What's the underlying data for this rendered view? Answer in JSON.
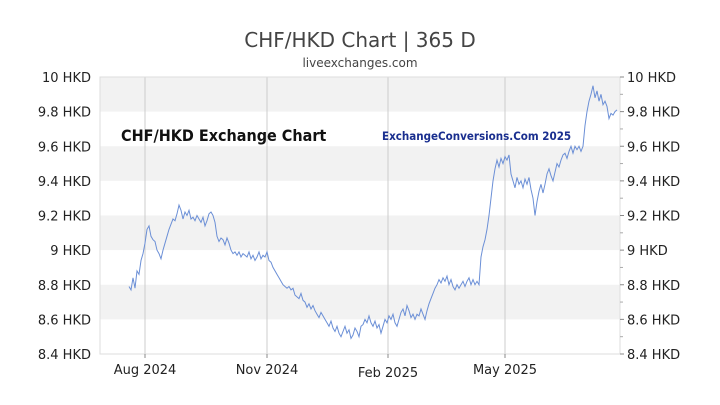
{
  "chart_data": {
    "type": "line",
    "title": "CHF/HKD Chart | 365 D",
    "subtitle": "liveexchanges.com",
    "inner_title": "CHF/HKD Exchange Chart",
    "watermark": "ExchangeConversions.Com 2025",
    "ylim": [
      8.4,
      10
    ],
    "y_ticks": [
      {
        "value": 10,
        "label": "10 HKD"
      },
      {
        "value": 9.8,
        "label": "9.8 HKD"
      },
      {
        "value": 9.6,
        "label": "9.6 HKD"
      },
      {
        "value": 9.4,
        "label": "9.4 HKD"
      },
      {
        "value": 9.2,
        "label": "9.2 HKD"
      },
      {
        "value": 9,
        "label": "9 HKD"
      },
      {
        "value": 8.8,
        "label": "8.8 HKD"
      },
      {
        "value": 8.6,
        "label": "8.6 HKD"
      },
      {
        "value": 8.4,
        "label": "8.4 HKD"
      }
    ],
    "x_ticks": [
      {
        "day": 25,
        "label": "Aug 2024",
        "gridline": true
      },
      {
        "day": 147,
        "label": "Nov 2024",
        "gridline": true
      },
      {
        "day": 268,
        "label": "Feb 2025",
        "gridline": true
      },
      {
        "day": 385,
        "label": "May 2025",
        "gridline": true
      }
    ],
    "xlim": [
      -20,
      500
    ],
    "grid": true,
    "line_color": "#6b8fd6",
    "band_color": "#f2f2f2",
    "series": [
      {
        "values": [
          [
            9,
            8.79
          ],
          [
            11,
            8.77
          ],
          [
            13,
            8.84
          ],
          [
            15,
            8.78
          ],
          [
            17,
            8.88
          ],
          [
            19,
            8.86
          ],
          [
            21,
            8.94
          ],
          [
            23,
            8.98
          ],
          [
            25,
            9.04
          ],
          [
            27,
            9.12
          ],
          [
            29,
            9.14
          ],
          [
            31,
            9.08
          ],
          [
            33,
            9.06
          ],
          [
            35,
            9.05
          ],
          [
            37,
            9.0
          ],
          [
            39,
            8.98
          ],
          [
            41,
            8.95
          ],
          [
            43,
            9.0
          ],
          [
            45,
            9.04
          ],
          [
            47,
            9.08
          ],
          [
            49,
            9.12
          ],
          [
            51,
            9.15
          ],
          [
            53,
            9.18
          ],
          [
            55,
            9.17
          ],
          [
            57,
            9.21
          ],
          [
            59,
            9.26
          ],
          [
            61,
            9.23
          ],
          [
            63,
            9.18
          ],
          [
            65,
            9.22
          ],
          [
            67,
            9.2
          ],
          [
            69,
            9.23
          ],
          [
            71,
            9.18
          ],
          [
            73,
            9.19
          ],
          [
            75,
            9.17
          ],
          [
            77,
            9.2
          ],
          [
            79,
            9.18
          ],
          [
            81,
            9.16
          ],
          [
            83,
            9.19
          ],
          [
            85,
            9.14
          ],
          [
            87,
            9.17
          ],
          [
            89,
            9.21
          ],
          [
            91,
            9.22
          ],
          [
            93,
            9.2
          ],
          [
            95,
            9.16
          ],
          [
            97,
            9.08
          ],
          [
            99,
            9.05
          ],
          [
            101,
            9.07
          ],
          [
            103,
            9.06
          ],
          [
            105,
            9.03
          ],
          [
            107,
            9.07
          ],
          [
            109,
            9.04
          ],
          [
            111,
            9.0
          ],
          [
            113,
            8.98
          ],
          [
            115,
            8.99
          ],
          [
            117,
            8.97
          ],
          [
            119,
            8.99
          ],
          [
            121,
            8.96
          ],
          [
            123,
            8.98
          ],
          [
            125,
            8.97
          ],
          [
            127,
            8.96
          ],
          [
            129,
            8.99
          ],
          [
            131,
            8.95
          ],
          [
            133,
            8.97
          ],
          [
            135,
            8.94
          ],
          [
            137,
            8.96
          ],
          [
            139,
            8.99
          ],
          [
            141,
            8.95
          ],
          [
            143,
            8.97
          ],
          [
            145,
            8.96
          ],
          [
            147,
            8.99
          ],
          [
            149,
            8.94
          ],
          [
            151,
            8.93
          ],
          [
            153,
            8.9
          ],
          [
            155,
            8.88
          ],
          [
            157,
            8.86
          ],
          [
            159,
            8.84
          ],
          [
            161,
            8.82
          ],
          [
            163,
            8.8
          ],
          [
            165,
            8.79
          ],
          [
            167,
            8.78
          ],
          [
            169,
            8.79
          ],
          [
            171,
            8.77
          ],
          [
            173,
            8.78
          ],
          [
            175,
            8.74
          ],
          [
            177,
            8.73
          ],
          [
            179,
            8.72
          ],
          [
            181,
            8.75
          ],
          [
            183,
            8.71
          ],
          [
            185,
            8.7
          ],
          [
            187,
            8.67
          ],
          [
            189,
            8.69
          ],
          [
            191,
            8.66
          ],
          [
            193,
            8.68
          ],
          [
            195,
            8.65
          ],
          [
            197,
            8.63
          ],
          [
            199,
            8.61
          ],
          [
            201,
            8.64
          ],
          [
            203,
            8.62
          ],
          [
            205,
            8.6
          ],
          [
            207,
            8.58
          ],
          [
            209,
            8.56
          ],
          [
            211,
            8.59
          ],
          [
            213,
            8.55
          ],
          [
            215,
            8.53
          ],
          [
            217,
            8.56
          ],
          [
            219,
            8.52
          ],
          [
            221,
            8.5
          ],
          [
            223,
            8.53
          ],
          [
            225,
            8.56
          ],
          [
            227,
            8.52
          ],
          [
            229,
            8.54
          ],
          [
            231,
            8.49
          ],
          [
            233,
            8.51
          ],
          [
            235,
            8.55
          ],
          [
            237,
            8.53
          ],
          [
            239,
            8.5
          ],
          [
            241,
            8.56
          ],
          [
            243,
            8.57
          ],
          [
            245,
            8.6
          ],
          [
            247,
            8.58
          ],
          [
            249,
            8.62
          ],
          [
            251,
            8.58
          ],
          [
            253,
            8.56
          ],
          [
            255,
            8.59
          ],
          [
            257,
            8.55
          ],
          [
            259,
            8.57
          ],
          [
            261,
            8.52
          ],
          [
            263,
            8.56
          ],
          [
            265,
            8.6
          ],
          [
            267,
            8.58
          ],
          [
            269,
            8.62
          ],
          [
            271,
            8.6
          ],
          [
            273,
            8.63
          ],
          [
            275,
            8.58
          ],
          [
            277,
            8.56
          ],
          [
            279,
            8.6
          ],
          [
            281,
            8.64
          ],
          [
            283,
            8.66
          ],
          [
            285,
            8.62
          ],
          [
            287,
            8.68
          ],
          [
            289,
            8.65
          ],
          [
            291,
            8.61
          ],
          [
            293,
            8.63
          ],
          [
            295,
            8.6
          ],
          [
            297,
            8.63
          ],
          [
            299,
            8.62
          ],
          [
            301,
            8.66
          ],
          [
            303,
            8.63
          ],
          [
            305,
            8.6
          ],
          [
            307,
            8.65
          ],
          [
            309,
            8.69
          ],
          [
            311,
            8.72
          ],
          [
            313,
            8.75
          ],
          [
            315,
            8.78
          ],
          [
            317,
            8.8
          ],
          [
            319,
            8.83
          ],
          [
            321,
            8.81
          ],
          [
            323,
            8.84
          ],
          [
            325,
            8.82
          ],
          [
            327,
            8.85
          ],
          [
            329,
            8.8
          ],
          [
            331,
            8.83
          ],
          [
            333,
            8.79
          ],
          [
            335,
            8.77
          ],
          [
            337,
            8.8
          ],
          [
            339,
            8.78
          ],
          [
            341,
            8.8
          ],
          [
            343,
            8.82
          ],
          [
            345,
            8.79
          ],
          [
            347,
            8.82
          ],
          [
            349,
            8.84
          ],
          [
            351,
            8.8
          ],
          [
            353,
            8.83
          ],
          [
            355,
            8.8
          ],
          [
            357,
            8.82
          ],
          [
            359,
            8.8
          ],
          [
            361,
            8.96
          ],
          [
            363,
            9.02
          ],
          [
            365,
            9.06
          ],
          [
            367,
            9.12
          ],
          [
            369,
            9.2
          ],
          [
            371,
            9.3
          ],
          [
            373,
            9.4
          ],
          [
            375,
            9.47
          ],
          [
            377,
            9.52
          ],
          [
            379,
            9.48
          ],
          [
            381,
            9.53
          ],
          [
            383,
            9.5
          ],
          [
            385,
            9.54
          ],
          [
            387,
            9.52
          ],
          [
            389,
            9.55
          ],
          [
            391,
            9.44
          ],
          [
            393,
            9.4
          ],
          [
            395,
            9.36
          ],
          [
            397,
            9.42
          ],
          [
            399,
            9.38
          ],
          [
            401,
            9.4
          ],
          [
            403,
            9.36
          ],
          [
            405,
            9.41
          ],
          [
            407,
            9.38
          ],
          [
            409,
            9.42
          ],
          [
            411,
            9.35
          ],
          [
            413,
            9.3
          ],
          [
            415,
            9.2
          ],
          [
            417,
            9.28
          ],
          [
            419,
            9.34
          ],
          [
            421,
            9.38
          ],
          [
            423,
            9.33
          ],
          [
            425,
            9.38
          ],
          [
            427,
            9.44
          ],
          [
            429,
            9.47
          ],
          [
            431,
            9.43
          ],
          [
            433,
            9.4
          ],
          [
            435,
            9.45
          ],
          [
            437,
            9.5
          ],
          [
            439,
            9.48
          ],
          [
            441,
            9.52
          ],
          [
            443,
            9.55
          ],
          [
            445,
            9.56
          ],
          [
            447,
            9.53
          ],
          [
            449,
            9.57
          ],
          [
            451,
            9.6
          ],
          [
            453,
            9.56
          ],
          [
            455,
            9.6
          ],
          [
            457,
            9.58
          ],
          [
            459,
            9.6
          ],
          [
            461,
            9.57
          ],
          [
            463,
            9.6
          ],
          [
            465,
            9.72
          ],
          [
            467,
            9.8
          ],
          [
            469,
            9.86
          ],
          [
            471,
            9.9
          ],
          [
            473,
            9.95
          ],
          [
            475,
            9.88
          ],
          [
            477,
            9.92
          ],
          [
            479,
            9.86
          ],
          [
            481,
            9.9
          ],
          [
            483,
            9.84
          ],
          [
            485,
            9.86
          ],
          [
            487,
            9.83
          ],
          [
            489,
            9.76
          ],
          [
            491,
            9.79
          ],
          [
            493,
            9.78
          ],
          [
            495,
            9.8
          ],
          [
            497,
            9.81
          ]
        ]
      }
    ]
  }
}
